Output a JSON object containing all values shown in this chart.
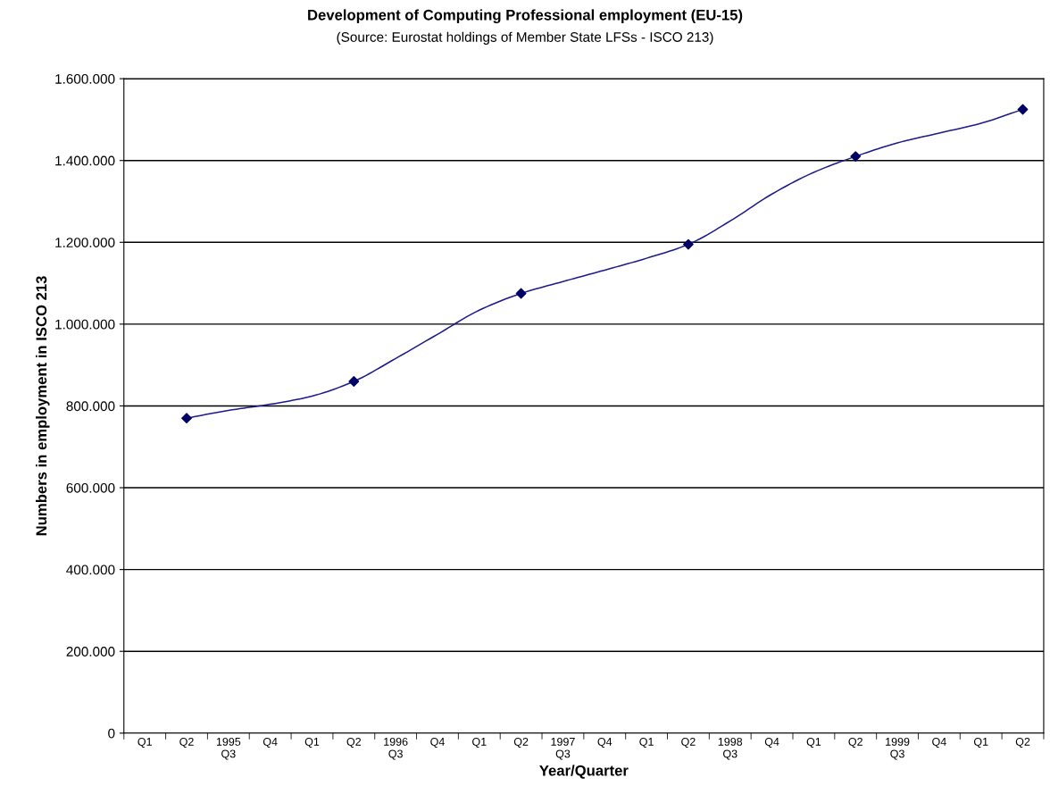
{
  "chart_data": {
    "type": "line",
    "title": "Development of Computing Professional employment (EU-15)",
    "subtitle": "(Source: Eurostat holdings of Member State LFSs - ISCO 213)",
    "xlabel": "Year/Quarter",
    "ylabel": "Numbers in employment in ISCO 213",
    "categories": [
      "Q1",
      "Q2",
      "1995\nQ3",
      "Q4",
      "Q1",
      "Q2",
      "1996\nQ3",
      "Q4",
      "Q1",
      "Q2",
      "1997\nQ3",
      "Q4",
      "Q1",
      "Q2",
      "1998\nQ3",
      "Q4",
      "Q1",
      "Q2",
      "1999\nQ3",
      "Q4",
      "Q1",
      "Q2"
    ],
    "series": [
      {
        "color": "#1a1a8c",
        "marker": "none",
        "values": [
          null,
          770000,
          789000,
          804000,
          824000,
          860000,
          916000,
          975000,
          1034000,
          1075000,
          1104000,
          1132000,
          1161000,
          1195000,
          1252000,
          1318000,
          1371000,
          1410000,
          1443000,
          1467000,
          1491000,
          1525000
        ]
      },
      {
        "type": "scatter",
        "color": "#000066",
        "marker": "diamond",
        "values": [
          null,
          770000,
          null,
          null,
          null,
          860000,
          null,
          null,
          null,
          1075000,
          null,
          null,
          null,
          1195000,
          null,
          null,
          null,
          1410000,
          null,
          null,
          null,
          1525000
        ]
      }
    ],
    "ylim": [
      0,
      1600000
    ],
    "yticks": [
      0,
      {
        "value": 200000,
        "label": "200.000"
      },
      {
        "value": 400000,
        "label": "400.000"
      },
      {
        "value": 600000,
        "label": "600.000"
      },
      {
        "value": 800000,
        "label": "800.000"
      },
      {
        "value": 1000000,
        "label": "1.000.000"
      },
      {
        "value": 1200000,
        "label": "1.200.000"
      },
      {
        "value": 1400000,
        "label": "1.400.000"
      },
      {
        "value": 1600000,
        "label": "1.600.000"
      }
    ],
    "grid": "y",
    "legend": false
  }
}
